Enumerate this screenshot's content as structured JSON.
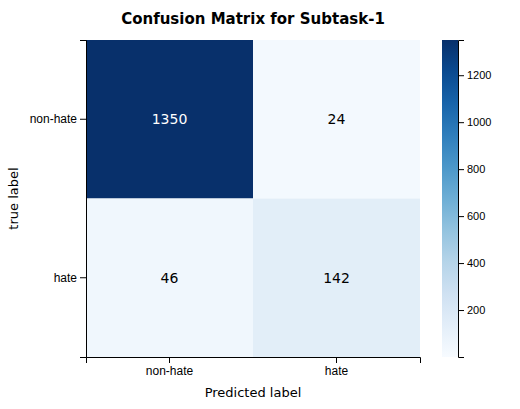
{
  "chart_data": {
    "type": "heatmap",
    "title": "Confusion Matrix for Subtask-1",
    "xlabel": "Predicted label",
    "ylabel": "true label",
    "x_categories": [
      "non-hate",
      "hate"
    ],
    "y_categories": [
      "non-hate",
      "hate"
    ],
    "matrix": [
      [
        1350,
        24
      ],
      [
        46,
        142
      ]
    ],
    "color": "Blues",
    "zlim": [
      0,
      1350
    ],
    "zticks": [
      200,
      400,
      600,
      800,
      1000,
      1200
    ],
    "data_labels": true
  }
}
